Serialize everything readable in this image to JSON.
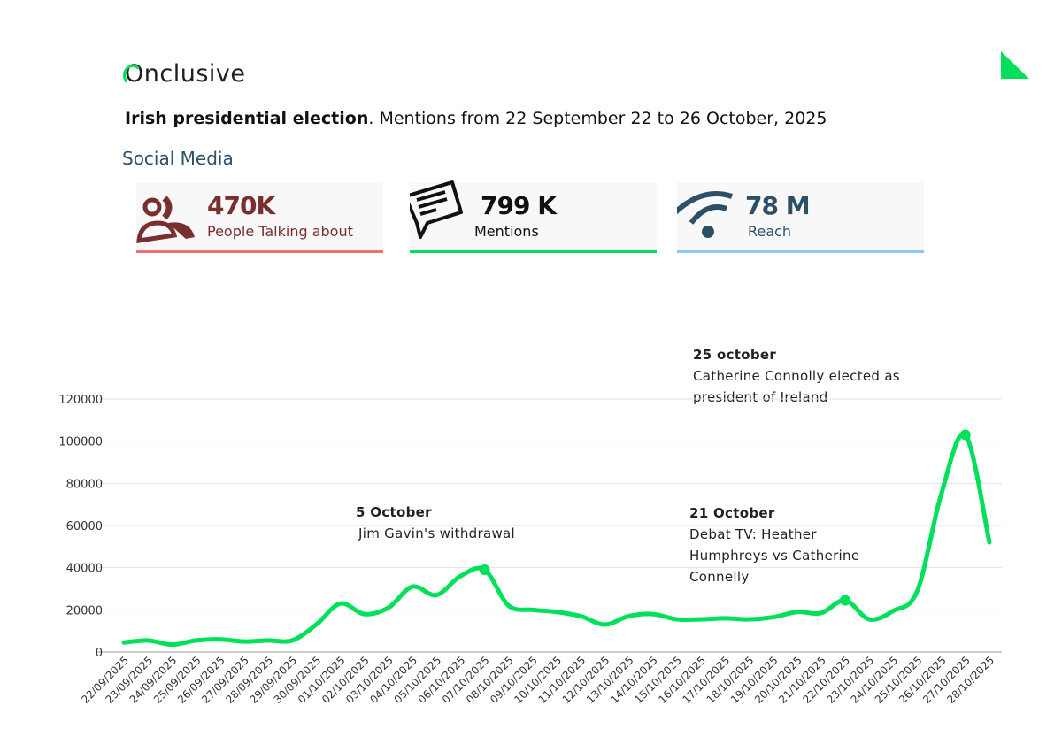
{
  "brand": {
    "logo": "Onclusive",
    "accent": "#00e05a"
  },
  "header": {
    "title_bold": "Irish presidential election",
    "title_rest": ". Mentions from 22 September 22 to 26 October, 2025"
  },
  "section": "Social Media",
  "cards": [
    {
      "value": "470K",
      "label": "People Talking about",
      "icon": "people-icon",
      "color": "#7a2e2e",
      "bar": "#f07070"
    },
    {
      "value": "799 K",
      "label": "Mentions",
      "icon": "speech-bubble-icon",
      "color": "#111111",
      "bar": "#00e05a"
    },
    {
      "value": "78 M",
      "label": "Reach",
      "icon": "wifi-signal-icon",
      "color": "#2d5069",
      "bar": "#8cc8f0"
    }
  ],
  "chart_data": {
    "type": "line",
    "ylim": [
      0,
      120000
    ],
    "yticks": [
      "0",
      "20000",
      "40000",
      "60000",
      "80000",
      "100000",
      "120000"
    ],
    "grid": true,
    "color": "#00e05a",
    "categories": [
      "22/09/2025",
      "23/09/2025",
      "24/09/2025",
      "25/09/2025",
      "26/09/2025",
      "27/09/2025",
      "28/09/2025",
      "29/09/2025",
      "30/09/2025",
      "01/10/2025",
      "02/10/2025",
      "03/10/2025",
      "04/10/2025",
      "05/10/2025",
      "06/10/2025",
      "07/10/2025",
      "08/10/2025",
      "09/10/2025",
      "10/10/2025",
      "11/10/2025",
      "12/10/2025",
      "13/10/2025",
      "14/10/2025",
      "15/10/2025",
      "16/10/2025",
      "17/10/2025",
      "18/10/2025",
      "19/10/2025",
      "20/10/2025",
      "21/10/2025",
      "22/10/2025",
      "23/10/2025",
      "24/10/2025",
      "25/10/2025",
      "26/10/2025",
      "27/10/2025",
      "28/10/2025"
    ],
    "values": [
      4500,
      5500,
      3500,
      5500,
      6000,
      5000,
      5500,
      5500,
      13000,
      23000,
      18000,
      21000,
      31000,
      27000,
      36000,
      39000,
      22000,
      20000,
      19000,
      17000,
      13000,
      17000,
      18000,
      15500,
      15500,
      16000,
      15500,
      16500,
      19000,
      18500,
      24500,
      15500,
      19500,
      29000,
      75000,
      103000,
      52000
    ],
    "markers": [
      "07/10/2025",
      "22/10/2025",
      "27/10/2025"
    ],
    "annotations": [
      {
        "heading": "5 October",
        "lines": [
          "Jim Gavin's withdrawal"
        ]
      },
      {
        "heading": "21 October",
        "lines": [
          "Debat TV: Heather",
          "Humphreys vs Catherine",
          "Connelly"
        ]
      },
      {
        "heading": "25 october",
        "lines": [
          "Catherine Connolly elected as",
          "president of Ireland"
        ]
      }
    ]
  }
}
